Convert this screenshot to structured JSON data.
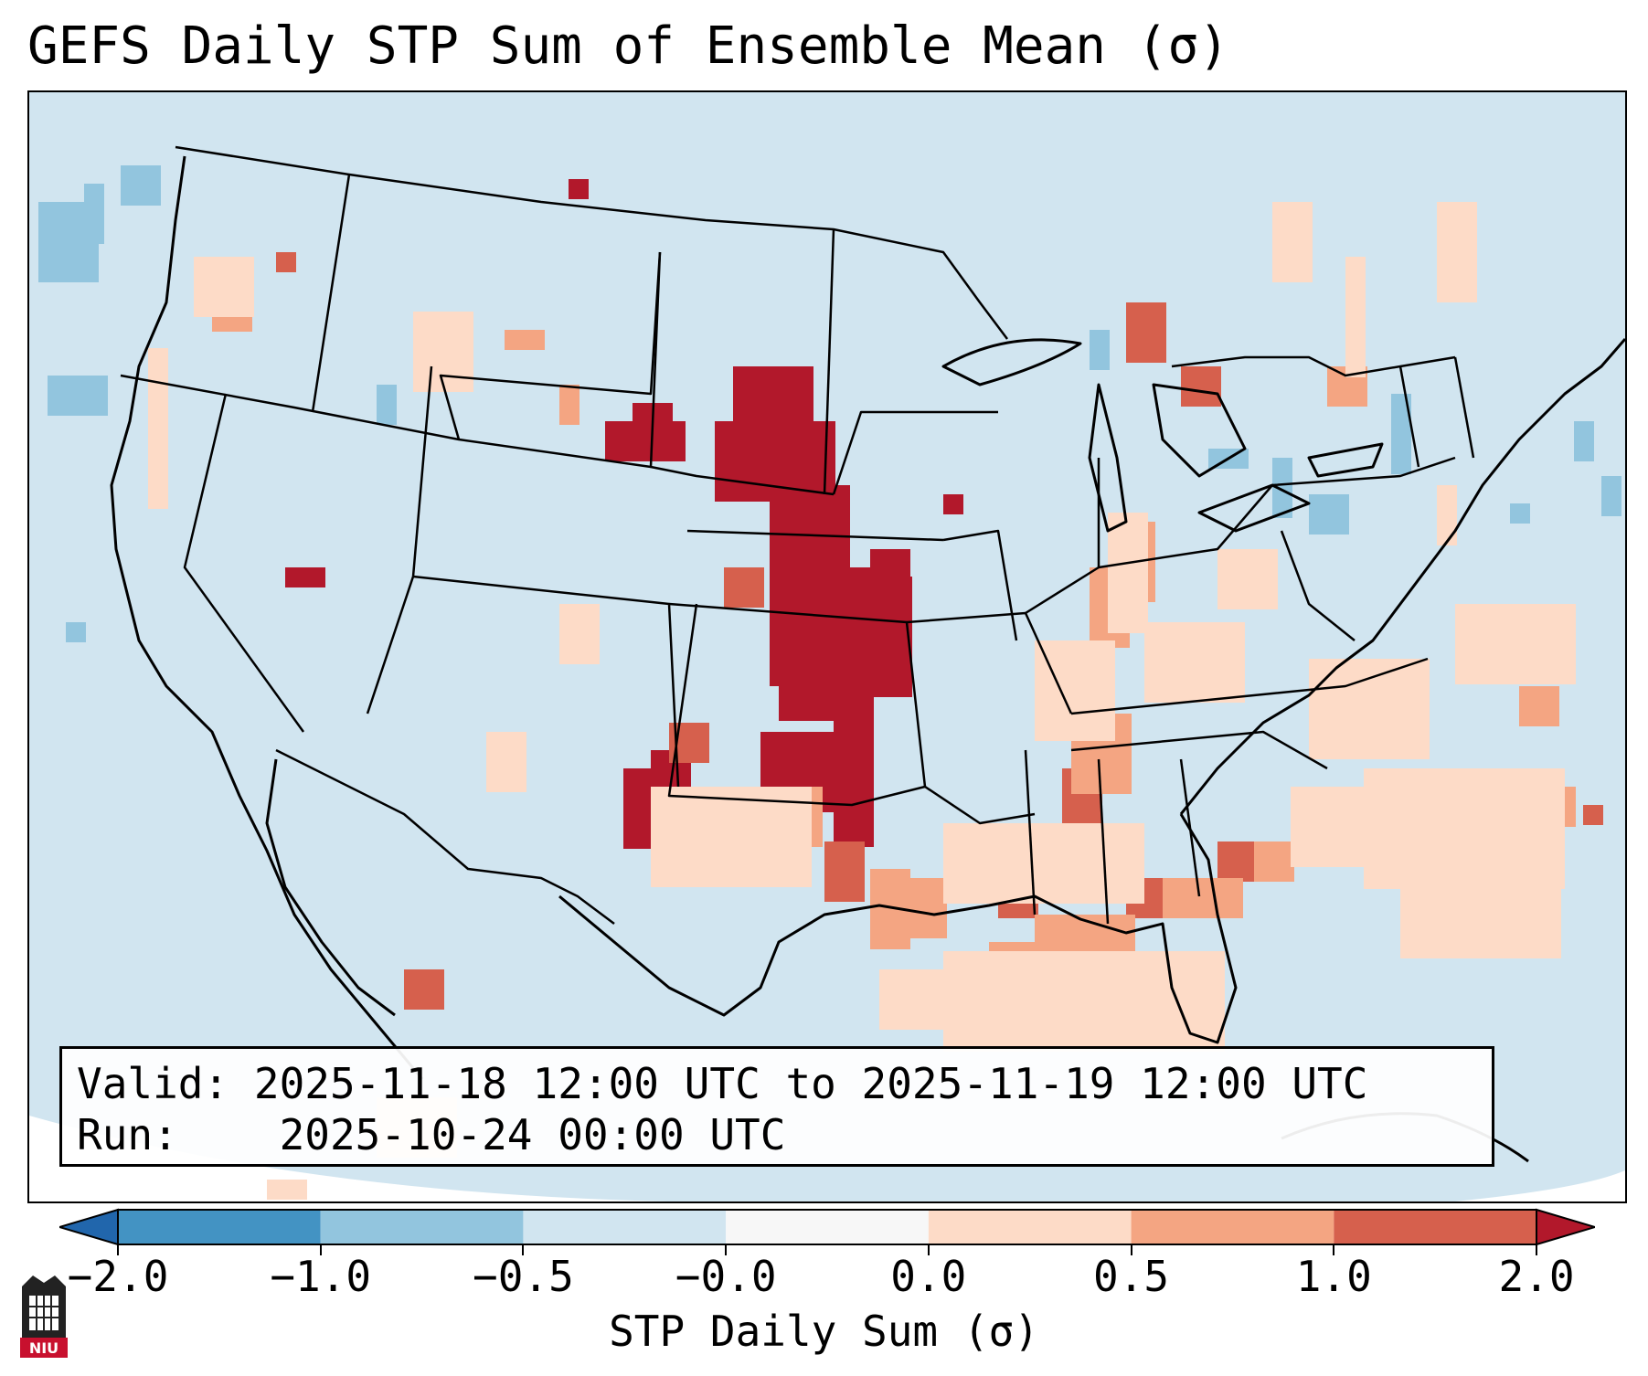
{
  "title": "GEFS Daily STP Sum of Ensemble Mean (σ)",
  "info": {
    "valid_label": "Valid:",
    "valid_value": "2025-11-18 12:00 UTC to 2025-11-19 12:00 UTC",
    "run_label": "Run:",
    "run_value": "2025-10-24 00:00 UTC"
  },
  "colorbar": {
    "title": "STP Daily Sum (σ)",
    "ticks": [
      "−2.0",
      "−1.0",
      "−0.5",
      "−0.0",
      "0.0",
      "0.5",
      "1.0",
      "2.0"
    ],
    "colors": [
      "#2166ac",
      "#4393c3",
      "#92c5de",
      "#d1e5f0",
      "#f7f7f7",
      "#fddbc7",
      "#f4a582",
      "#d6604d",
      "#b2182b"
    ],
    "extend": "both"
  },
  "map": {
    "projection": "lambert-conformal",
    "region": "CONUS",
    "background_color": "#d1e5f0",
    "features": [
      "coastlines",
      "state borders",
      "country borders"
    ]
  },
  "logo": {
    "text": "NIU"
  }
}
